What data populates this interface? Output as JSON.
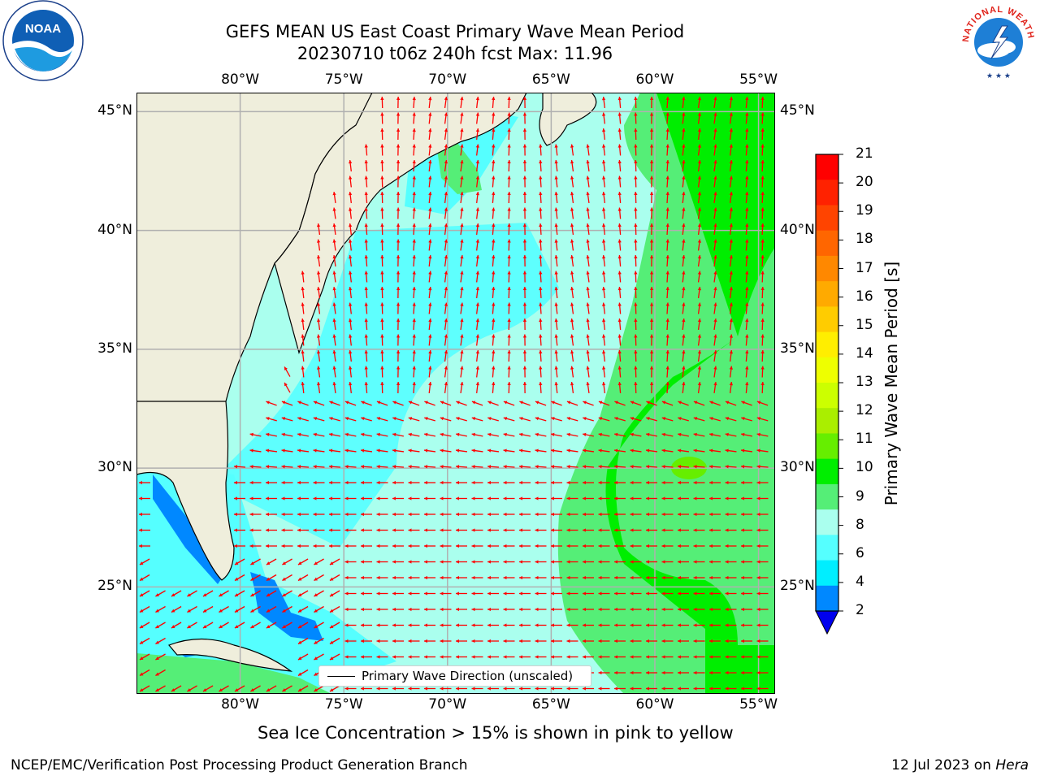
{
  "header": {
    "title_line1": "GEFS MEAN US East Coast Primary Wave Mean Period",
    "title_line2": "20230710 t06z 240h fcst   Max: 11.96"
  },
  "map": {
    "extent": {
      "lon_min": -85,
      "lon_max": -54.2,
      "lat_min": 20.5,
      "lat_max": 45.8
    },
    "lon_ticks": [
      {
        "value": -80,
        "label": "80°W"
      },
      {
        "value": -75,
        "label": "75°W"
      },
      {
        "value": -70,
        "label": "70°W"
      },
      {
        "value": -65,
        "label": "65°W"
      },
      {
        "value": -60,
        "label": "60°W"
      },
      {
        "value": -55,
        "label": "55°W"
      }
    ],
    "lat_ticks": [
      {
        "value": 45,
        "label": "45°N"
      },
      {
        "value": 40,
        "label": "40°N"
      },
      {
        "value": 35,
        "label": "35°N"
      },
      {
        "value": 30,
        "label": "30°N"
      },
      {
        "value": 25,
        "label": "25°N"
      }
    ],
    "grid": true,
    "land_color": "#efeedc",
    "arrow_color": "#ff0000",
    "max_value": 11.96
  },
  "colorbar": {
    "label": "Primary Wave Mean Period [s]",
    "tick_labels": [
      "21",
      "20",
      "19",
      "18",
      "17",
      "16",
      "15",
      "14",
      "13",
      "12",
      "11",
      "10",
      "9",
      "8",
      "6",
      "4",
      "2"
    ],
    "colors_top_to_bottom": [
      "#ff0000",
      "#ff2200",
      "#ff4400",
      "#ff6600",
      "#ff8800",
      "#ffaa00",
      "#ffcc00",
      "#ffee00",
      "#eeff00",
      "#ccff00",
      "#aaee00",
      "#66ee00",
      "#00ee00",
      "#55ee77",
      "#aaffee",
      "#55ffff",
      "#00eeff",
      "#0088ff"
    ],
    "extend_color": "#0000ee"
  },
  "legend": {
    "label": "Primary Wave Direction (unscaled)"
  },
  "notes": {
    "sea_ice": "Sea Ice Concentration > 15% is shown in pink to yellow"
  },
  "footer": {
    "left": "NCEP/EMC/Verification Post Processing Product Generation Branch",
    "right_prefix": "12 Jul 2023 on ",
    "right_italic": "Hera"
  },
  "logos": {
    "noaa_text": "NOAA",
    "nws_text": "NATIONAL WEATHER SERVICE"
  }
}
